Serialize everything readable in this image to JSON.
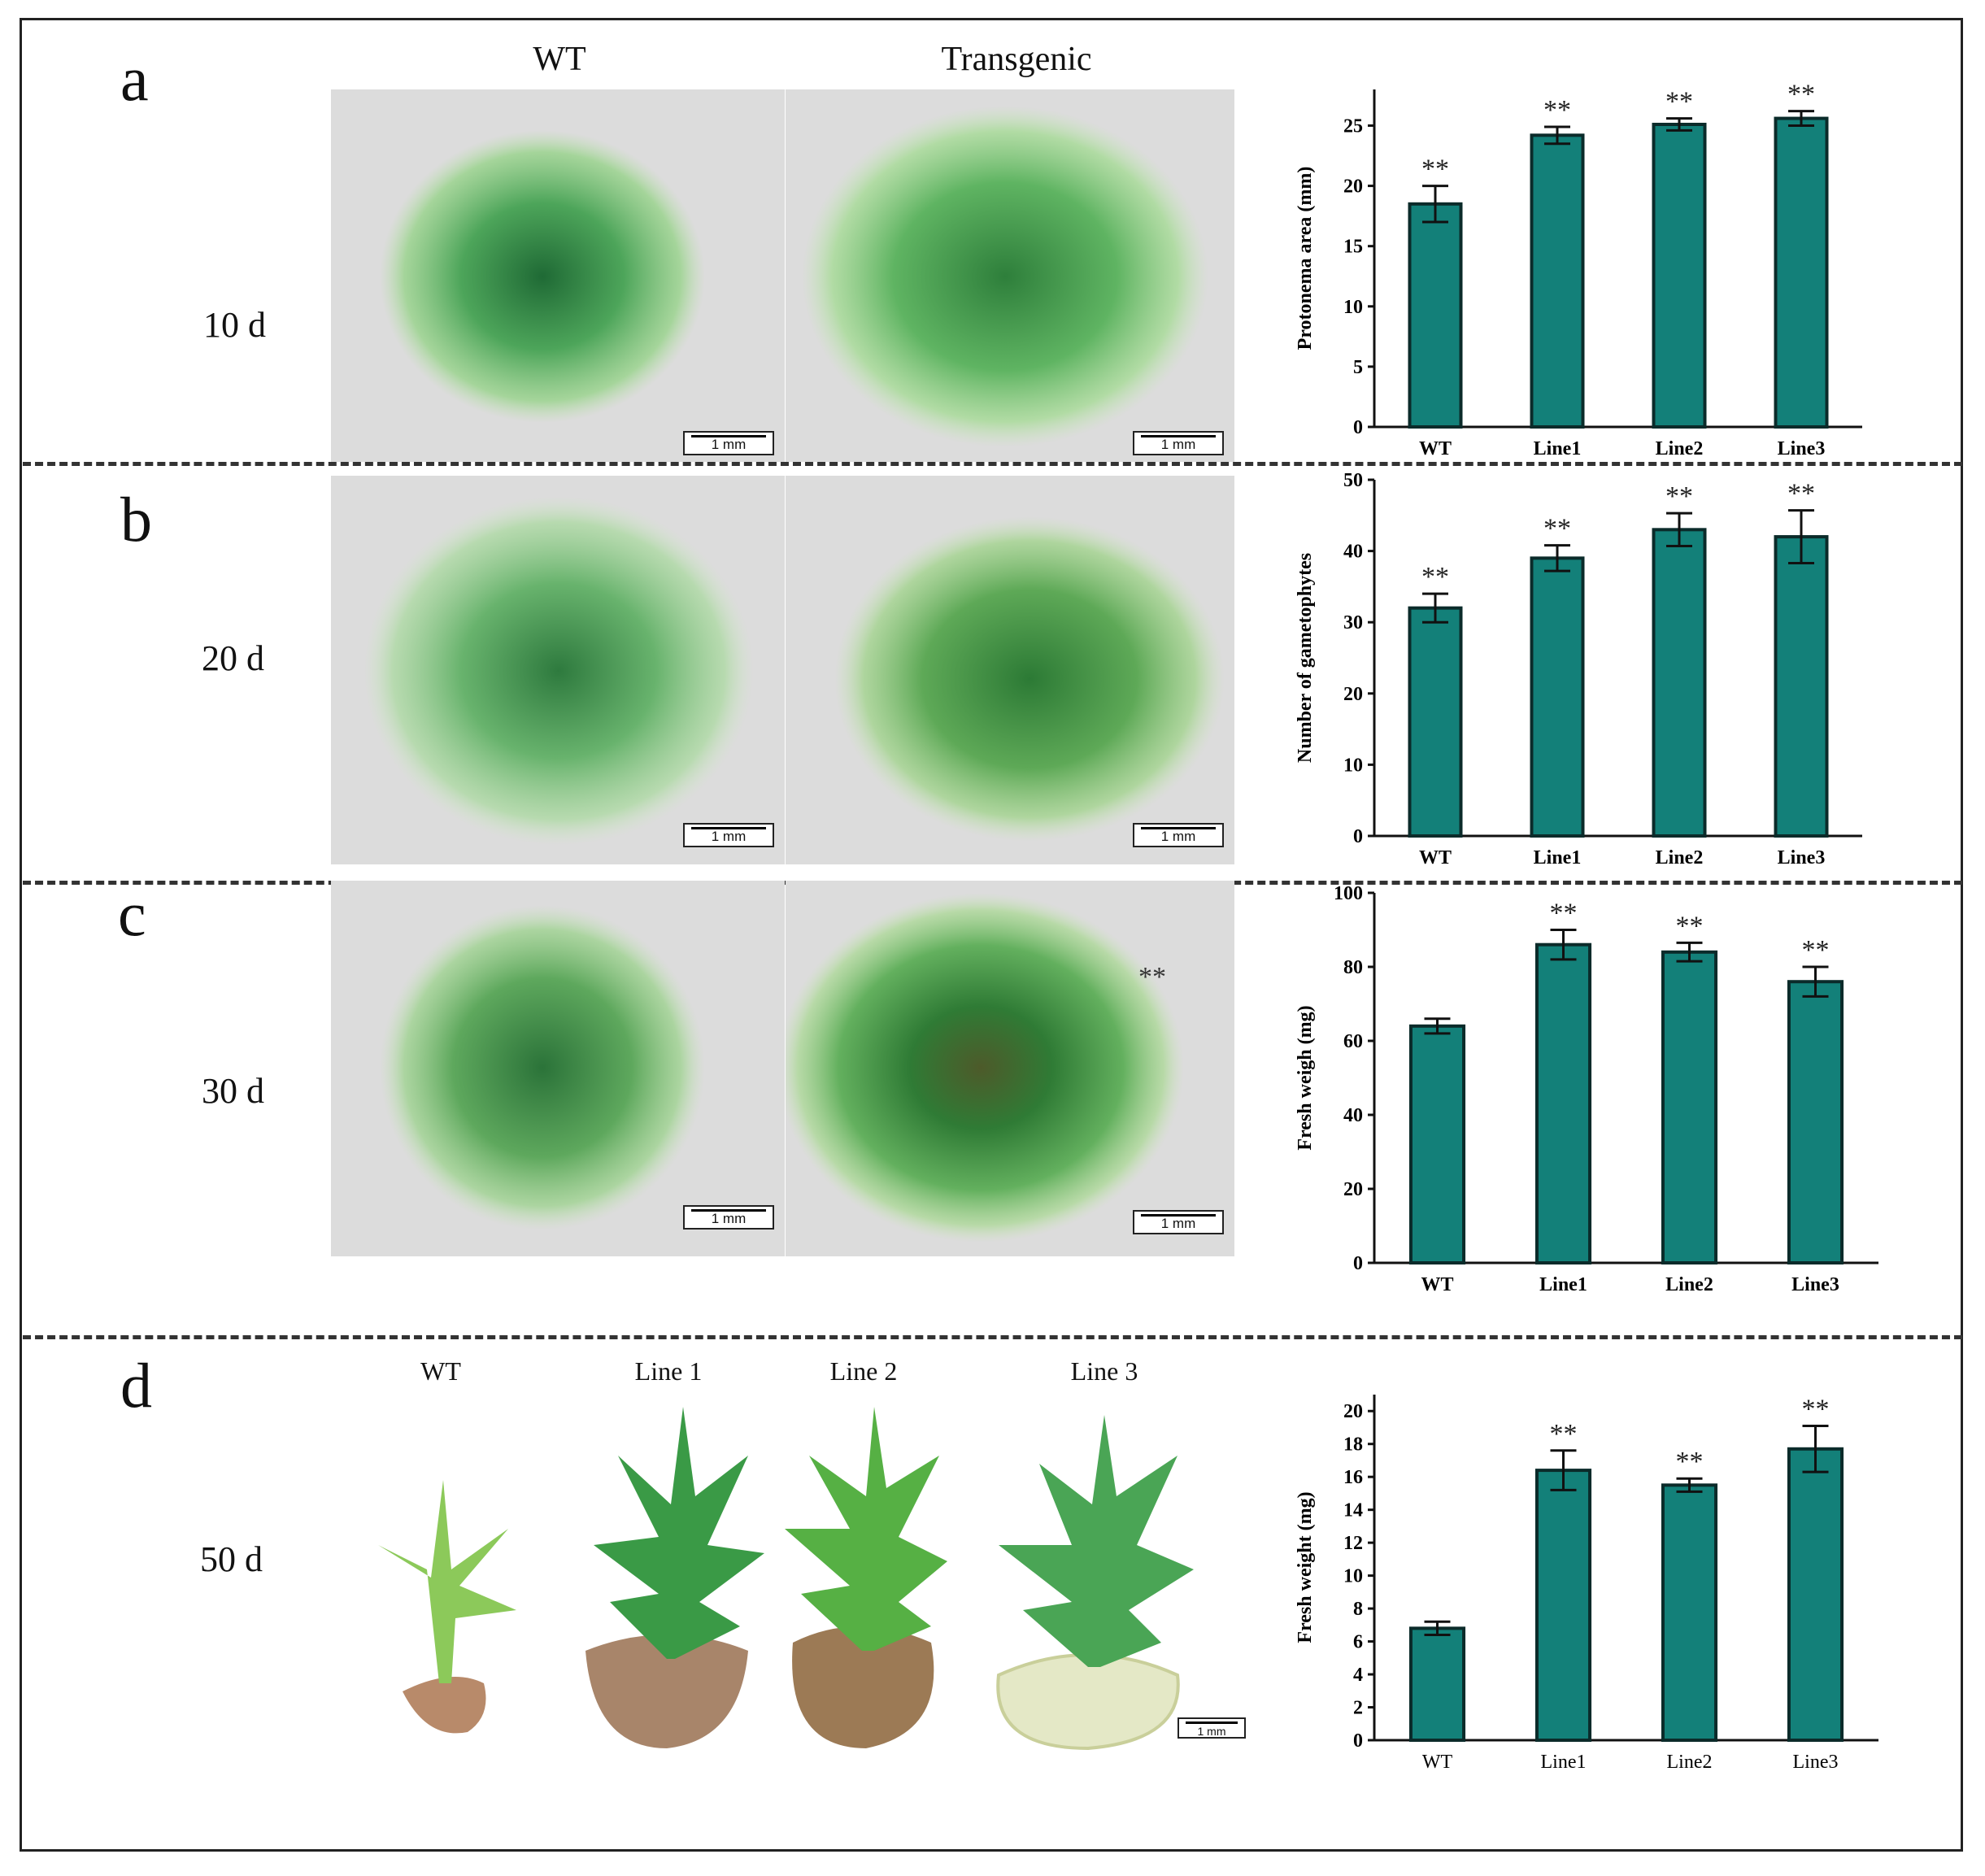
{
  "panels": {
    "a": {
      "letter": "a",
      "day": "10 d",
      "wt_title": "WT",
      "tg_title": "Transgenic"
    },
    "b": {
      "letter": "b",
      "day": "20 d"
    },
    "c": {
      "letter": "c",
      "day": "30 d",
      "annotation": "**"
    },
    "d": {
      "letter": "d",
      "day": "50 d",
      "plant_titles": [
        "WT",
        "Line 1",
        "Line 2",
        "Line 3"
      ]
    }
  },
  "scalebar_label": "1 mm",
  "colors": {
    "bar": "#138079",
    "bar_edge": "#0b2b2a",
    "moss_dark": "#2f7d3c",
    "moss_light": "#8cc978",
    "photo_bg": "#dedede"
  },
  "chart_data": [
    {
      "type": "bar",
      "panel": "a",
      "categories": [
        "WT",
        "Line1",
        "Line2",
        "Line3"
      ],
      "values": [
        18.5,
        24.2,
        25.1,
        25.6
      ],
      "errors": [
        1.5,
        0.7,
        0.5,
        0.6
      ],
      "significance": [
        "**",
        "**",
        "**",
        "**"
      ],
      "ylabel": "Protonema area (mm)",
      "ylim": [
        0,
        28
      ],
      "yticks": [
        0,
        5,
        10,
        15,
        20,
        25
      ]
    },
    {
      "type": "bar",
      "panel": "b",
      "categories": [
        "WT",
        "Line1",
        "Line2",
        "Line3"
      ],
      "values": [
        32,
        39,
        43,
        42
      ],
      "errors": [
        2,
        1.8,
        2.3,
        3.7
      ],
      "significance": [
        "**",
        "**",
        "**",
        "**"
      ],
      "ylabel": "Number of gametophytes",
      "ylim": [
        0,
        50
      ],
      "yticks": [
        0,
        10,
        20,
        30,
        40,
        50
      ]
    },
    {
      "type": "bar",
      "panel": "c",
      "categories": [
        "WT",
        "Line1",
        "Line2",
        "Line3"
      ],
      "values": [
        64,
        86,
        84,
        76
      ],
      "errors": [
        2,
        4,
        2.5,
        4
      ],
      "significance": [
        "",
        "**",
        "**",
        "**"
      ],
      "ylabel": "Fresh weigh (mg)",
      "ylim": [
        0,
        100
      ],
      "yticks": [
        0,
        20,
        40,
        60,
        80,
        100
      ]
    },
    {
      "type": "bar",
      "panel": "d",
      "categories": [
        "WT",
        "Line1",
        "Line2",
        "Line3"
      ],
      "values": [
        6.8,
        16.4,
        15.5,
        17.7
      ],
      "errors": [
        0.4,
        1.2,
        0.4,
        1.4
      ],
      "significance": [
        "",
        "**",
        "**",
        "**"
      ],
      "ylabel": "Fresh weight (mg)",
      "ylim": [
        0,
        21
      ],
      "yticks": [
        0,
        2,
        4,
        6,
        8,
        10,
        12,
        14,
        16,
        18,
        20
      ]
    }
  ]
}
